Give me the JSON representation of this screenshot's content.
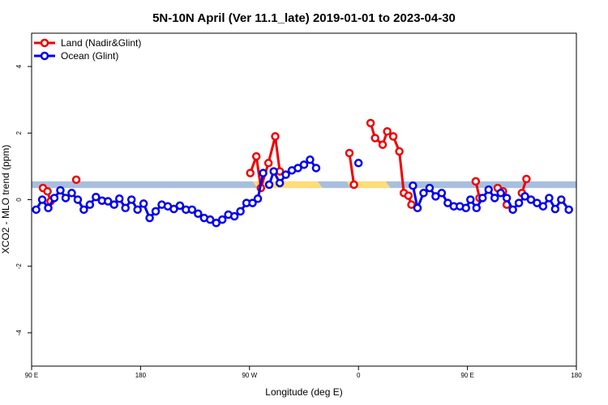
{
  "chart_data": {
    "type": "line",
    "title": "5N-10N April (Ver 11.1_late)   2019-01-01 to 2023-04-30",
    "xlabel": "Longitude (deg E)",
    "ylabel": "XCO2 - MLO trend (ppm)",
    "xlim": [
      90,
      450
    ],
    "ylim": [
      -5,
      5
    ],
    "x_ticks": [
      {
        "value": 90,
        "label": "90 E"
      },
      {
        "value": 162,
        "label": "180"
      },
      {
        "value": 234,
        "label": "90 W"
      },
      {
        "value": 306,
        "label": "0"
      },
      {
        "value": 378,
        "label": "90 E"
      },
      {
        "value": 450,
        "label": "180"
      }
    ],
    "y_ticks": [
      {
        "value": -4,
        "label": "-4"
      },
      {
        "value": -2,
        "label": "-2"
      },
      {
        "value": 0,
        "label": "0"
      },
      {
        "value": 2,
        "label": "2"
      },
      {
        "value": 4,
        "label": "4"
      }
    ],
    "grid": false,
    "legend_position": "top-left",
    "surface_band": {
      "y_range": [
        0.35,
        0.55
      ],
      "ocean_color": "#a8bfdf",
      "land_color": "#fedc78",
      "land_segments": [
        [
          236,
          279
        ],
        [
          298,
          324
        ]
      ]
    },
    "series": [
      {
        "name": "Land (Nadir&Glint)",
        "color": "#ee0000",
        "segments": [
          [
            [
              97.5,
              0.35
            ],
            [
              100.5,
              0.25
            ],
            [
              102.5,
              -0.05
            ]
          ],
          [
            [
              119.5,
              0.6
            ]
          ],
          [
            [
              234.5,
              0.8
            ],
            [
              238.5,
              1.3
            ],
            [
              241.5,
              0.35
            ],
            [
              246.5,
              1.1
            ],
            [
              251,
              1.9
            ],
            [
              254,
              0.85
            ]
          ],
          [
            [
              300,
              1.4
            ],
            [
              303,
              0.45
            ]
          ],
          [
            [
              314,
              2.3
            ],
            [
              317,
              1.85
            ],
            [
              322,
              1.65
            ],
            [
              325,
              2.05
            ],
            [
              329,
              1.9
            ],
            [
              333,
              1.45
            ],
            [
              336,
              0.2
            ],
            [
              339,
              0.12
            ],
            [
              341,
              -0.15
            ]
          ],
          [
            [
              383.5,
              0.55
            ],
            [
              386,
              0.05
            ]
          ],
          [
            [
              398,
              0.35
            ],
            [
              401.5,
              0.25
            ],
            [
              404,
              -0.15
            ]
          ],
          [
            [
              414,
              0.2
            ],
            [
              417,
              0.62
            ]
          ]
        ]
      },
      {
        "name": "Ocean (Glint)",
        "color": "#0000ee",
        "segments": [
          [
            [
              93,
              -0.3
            ],
            [
              97,
              0.0
            ],
            [
              101,
              -0.25
            ],
            [
              105,
              0.05
            ],
            [
              109,
              0.28
            ],
            [
              112.5,
              0.05
            ],
            [
              116.5,
              0.2
            ],
            [
              120.5,
              0.0
            ],
            [
              124.5,
              -0.3
            ],
            [
              128.5,
              -0.15
            ],
            [
              132.5,
              0.08
            ],
            [
              136.5,
              -0.03
            ],
            [
              140.5,
              -0.05
            ],
            [
              144.5,
              -0.15
            ],
            [
              148,
              0.03
            ],
            [
              152,
              -0.25
            ],
            [
              156,
              0.0
            ],
            [
              160,
              -0.3
            ],
            [
              164,
              -0.12
            ],
            [
              168,
              -0.55
            ],
            [
              172,
              -0.35
            ],
            [
              176,
              -0.15
            ],
            [
              180,
              -0.2
            ],
            [
              184,
              -0.28
            ],
            [
              188,
              -0.18
            ],
            [
              192,
              -0.3
            ],
            [
              196,
              -0.3
            ],
            [
              200,
              -0.42
            ],
            [
              204,
              -0.55
            ],
            [
              208,
              -0.6
            ],
            [
              212,
              -0.7
            ],
            [
              216,
              -0.6
            ],
            [
              220,
              -0.45
            ],
            [
              224,
              -0.5
            ],
            [
              228,
              -0.35
            ],
            [
              232,
              -0.1
            ],
            [
              236,
              -0.1
            ],
            [
              239.5,
              0.03
            ],
            [
              243,
              0.8
            ]
          ],
          [
            [
              247,
              0.45
            ],
            [
              250,
              0.85
            ],
            [
              254,
              0.5
            ],
            [
              258,
              0.75
            ],
            [
              262,
              0.88
            ],
            [
              266,
              0.95
            ],
            [
              270,
              1.05
            ],
            [
              274,
              1.2
            ],
            [
              278,
              0.95
            ]
          ],
          [
            [
              306,
              1.1
            ]
          ],
          [
            [
              342,
              0.42
            ],
            [
              345,
              -0.25
            ],
            [
              349,
              0.2
            ],
            [
              353,
              0.35
            ],
            [
              357,
              0.1
            ],
            [
              361,
              0.2
            ],
            [
              365,
              -0.1
            ],
            [
              369,
              -0.2
            ],
            [
              373,
              -0.2
            ],
            [
              377,
              -0.25
            ],
            [
              380,
              0.0
            ],
            [
              384,
              -0.25
            ],
            [
              388,
              0.05
            ],
            [
              392,
              0.3
            ],
            [
              396,
              0.05
            ],
            [
              400,
              0.2
            ],
            [
              404,
              0.05
            ],
            [
              408,
              -0.3
            ],
            [
              412,
              -0.1
            ],
            [
              416,
              0.1
            ],
            [
              420,
              0.0
            ],
            [
              424,
              -0.1
            ],
            [
              428,
              -0.2
            ],
            [
              432,
              0.05
            ],
            [
              436,
              -0.28
            ],
            [
              440,
              0.0
            ],
            [
              445,
              -0.3
            ]
          ]
        ]
      }
    ]
  }
}
